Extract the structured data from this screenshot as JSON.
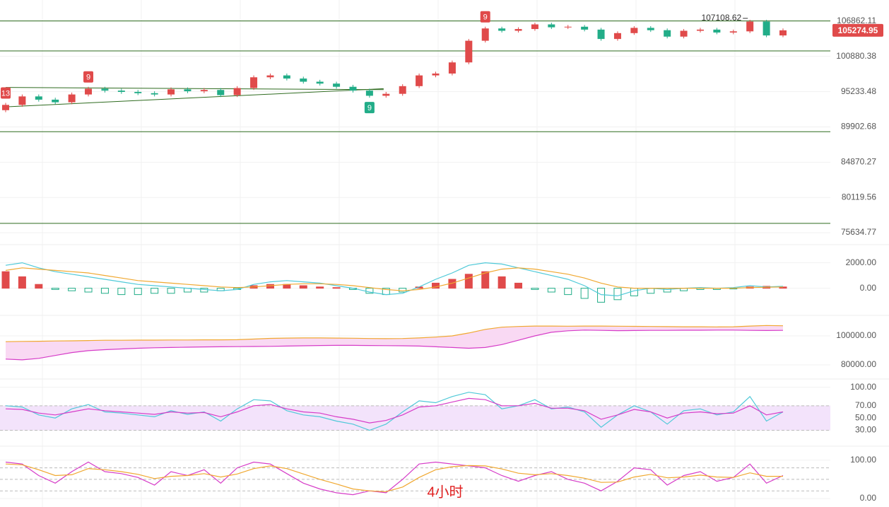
{
  "chart_data": [
    {
      "type": "candlestick",
      "log_scale": true,
      "grid": true,
      "ylim": [
        74255,
        110625
      ],
      "yticks": [
        106862.11,
        100880.38,
        95233.48,
        89902.68,
        84870.27,
        80119.56,
        75634.77
      ],
      "up_color": "#e04a4a",
      "down_color": "#22ad88",
      "line_color": "#2e6b1f",
      "open": [
        92400,
        93200,
        94500,
        94000,
        93600,
        94800,
        95700,
        95400,
        95200,
        95000,
        94800,
        95600,
        95300,
        95500,
        94700,
        95800,
        97500,
        97800,
        97300,
        96800,
        96500,
        96000,
        95400,
        94600,
        94900,
        96100,
        97800,
        98100,
        99900,
        103500,
        105600,
        105200,
        105500,
        106300,
        105800,
        105900,
        105400,
        103800,
        104800,
        105700,
        105300,
        104200,
        105200,
        105400,
        104900,
        105100,
        106800,
        104400
      ],
      "high": [
        93500,
        94800,
        94800,
        94300,
        95100,
        96000,
        96000,
        95700,
        95500,
        95300,
        95900,
        95900,
        95800,
        95800,
        96100,
        97800,
        98100,
        98100,
        97600,
        97100,
        96800,
        96300,
        95700,
        95200,
        96400,
        98100,
        98400,
        100200,
        103800,
        105900,
        105900,
        105800,
        106600,
        106600,
        106200,
        106200,
        105700,
        105100,
        106000,
        106000,
        105600,
        105500,
        105700,
        105700,
        105400,
        107108.62,
        107100,
        105600
      ],
      "low": [
        92100,
        92900,
        93700,
        93300,
        93300,
        94500,
        95100,
        94900,
        94700,
        94500,
        94500,
        95000,
        95000,
        94400,
        94400,
        95500,
        97200,
        97000,
        96500,
        96200,
        95700,
        95100,
        94300,
        94300,
        94600,
        95800,
        97500,
        97800,
        99600,
        103200,
        104900,
        104900,
        105200,
        105500,
        105500,
        105100,
        103500,
        103500,
        104500,
        105000,
        103900,
        103900,
        104900,
        104600,
        104600,
        104800,
        104100,
        104100
      ],
      "close": [
        93200,
        94500,
        94000,
        93600,
        94800,
        95700,
        95400,
        95200,
        95000,
        94800,
        95600,
        95300,
        95500,
        94700,
        95800,
        97500,
        97800,
        97300,
        96800,
        96500,
        96000,
        95400,
        94600,
        94900,
        96100,
        97800,
        98100,
        99900,
        103500,
        105600,
        105200,
        105500,
        106300,
        105800,
        105900,
        105400,
        103800,
        104800,
        105700,
        105300,
        104200,
        105200,
        105400,
        104900,
        105100,
        106800,
        104400,
        105274.95
      ],
      "hlines": [
        106900,
        101800,
        89200,
        76800
      ],
      "trendlines": [
        {
          "x": [
            0,
            22
          ],
          "y": [
            95900,
            95550
          ]
        },
        {
          "x": [
            0,
            22
          ],
          "y": [
            92900,
            95700
          ]
        }
      ],
      "annotations": [
        {
          "text": "13",
          "x": 0,
          "color": "#e04a4a"
        },
        {
          "text": "9",
          "x": 5,
          "color": "#e04a4a"
        },
        {
          "text": "9",
          "x": 22,
          "color": "#22ad88"
        },
        {
          "text": "9",
          "x": 29,
          "color": "#e04a4a"
        }
      ]
    },
    {
      "type": "combo",
      "grid": true,
      "ylim": [
        -1800,
        3200
      ],
      "yticks": [
        {
          "value": 2000,
          "label": "2000.00"
        },
        {
          "value": 0,
          "label": "0.00"
        }
      ],
      "series": [
        {
          "style": "bar",
          "color": "#e04a4a",
          "neg_color": "#22ad88",
          "values": [
            1300,
            900,
            300,
            -100,
            -200,
            -300,
            -400,
            -500,
            -500,
            -400,
            -400,
            -300,
            -300,
            -200,
            -100,
            200,
            300,
            300,
            200,
            100,
            50,
            -100,
            -400,
            -500,
            -300,
            100,
            400,
            700,
            1100,
            1300,
            900,
            400,
            -100,
            -300,
            -500,
            -800,
            -1100,
            -900,
            -600,
            -400,
            -300,
            -200,
            -100,
            -100,
            -50,
            100,
            150,
            100
          ]
        },
        {
          "style": "line",
          "color": "#4fc9d8",
          "values": [
            1800,
            2000,
            1600,
            1300,
            1100,
            900,
            700,
            500,
            300,
            200,
            100,
            0,
            -100,
            -200,
            -100,
            300,
            500,
            600,
            500,
            400,
            200,
            0,
            -300,
            -500,
            -400,
            100,
            700,
            1200,
            1800,
            2000,
            1900,
            1600,
            1300,
            1000,
            700,
            200,
            -500,
            -600,
            -200,
            0,
            -100,
            0,
            50,
            0,
            50,
            200,
            100,
            150
          ]
        },
        {
          "style": "line",
          "color": "#f0a830",
          "values": [
            1400,
            1600,
            1500,
            1400,
            1300,
            1200,
            1000,
            800,
            600,
            500,
            400,
            300,
            200,
            100,
            50,
            100,
            200,
            300,
            350,
            350,
            300,
            200,
            50,
            -100,
            -200,
            -100,
            100,
            400,
            800,
            1200,
            1500,
            1600,
            1500,
            1300,
            1100,
            800,
            400,
            100,
            0,
            0,
            0,
            0,
            0,
            0,
            0,
            50,
            80,
            100
          ]
        }
      ]
    },
    {
      "type": "line",
      "grid": true,
      "ylim": [
        73200,
        112200
      ],
      "fill_color": "#f9d9f3",
      "yticks": [
        {
          "value": 100000,
          "label": "100000.00"
        },
        {
          "value": 80000,
          "label": "80000.00"
        }
      ],
      "series": [
        {
          "color": "#f0a830",
          "values": [
            96000,
            96200,
            96300,
            96500,
            96600,
            96800,
            97000,
            97000,
            97100,
            97100,
            97200,
            97200,
            97300,
            97300,
            97400,
            97800,
            98300,
            98500,
            98600,
            98600,
            98500,
            98400,
            98200,
            98100,
            98200,
            98600,
            99200,
            100000,
            102000,
            104500,
            106000,
            106500,
            106800,
            106800,
            106700,
            106800,
            106800,
            106700,
            106600,
            106500,
            106400,
            106300,
            106300,
            106200,
            106300,
            106800,
            107200,
            107000
          ]
        },
        {
          "color": "#d63cc8",
          "values": [
            84000,
            83500,
            84500,
            86500,
            88500,
            89800,
            90500,
            91000,
            91500,
            91800,
            92000,
            92200,
            92400,
            92500,
            92600,
            92700,
            92800,
            93000,
            93200,
            93400,
            93500,
            93500,
            93400,
            93300,
            93200,
            93000,
            92500,
            92000,
            91500,
            92000,
            94000,
            97000,
            100000,
            102500,
            103500,
            104000,
            103800,
            103600,
            103700,
            103800,
            103800,
            103900,
            103900,
            104000,
            104000,
            103800,
            103700,
            103800
          ]
        }
      ]
    },
    {
      "type": "line",
      "grid": true,
      "ylim": [
        11,
        109
      ],
      "band": [
        30,
        70
      ],
      "band_color": "#f3e3fb",
      "yticks": [
        {
          "value": 100,
          "label": "100.00"
        },
        {
          "value": 70,
          "label": "70.00"
        },
        {
          "value": 50,
          "label": "50.00"
        },
        {
          "value": 30,
          "label": "30.00"
        }
      ],
      "series": [
        {
          "color": "#4fc9d8",
          "values": [
            70,
            68,
            55,
            50,
            65,
            72,
            60,
            58,
            55,
            52,
            62,
            56,
            60,
            45,
            65,
            80,
            78,
            62,
            55,
            52,
            45,
            40,
            30,
            40,
            60,
            78,
            75,
            85,
            92,
            88,
            65,
            70,
            80,
            65,
            68,
            60,
            35,
            55,
            70,
            60,
            40,
            62,
            65,
            55,
            60,
            85,
            45,
            60
          ]
        },
        {
          "color": "#d63cc8",
          "values": [
            65,
            64,
            58,
            55,
            60,
            65,
            62,
            60,
            58,
            56,
            60,
            58,
            59,
            52,
            60,
            70,
            72,
            65,
            60,
            58,
            52,
            48,
            42,
            46,
            55,
            68,
            70,
            76,
            82,
            80,
            70,
            70,
            74,
            66,
            66,
            62,
            48,
            55,
            64,
            60,
            50,
            58,
            60,
            57,
            58,
            70,
            55,
            60
          ]
        }
      ]
    },
    {
      "type": "line",
      "grid": true,
      "ylim": [
        -22,
        129
      ],
      "levels": [
        80,
        50,
        20
      ],
      "yticks": [
        {
          "value": 100,
          "label": "100.00"
        },
        {
          "value": 0,
          "label": "0.00"
        }
      ],
      "series": [
        {
          "color": "#d63cc8",
          "values": [
            95,
            90,
            60,
            40,
            70,
            95,
            70,
            65,
            55,
            35,
            70,
            60,
            75,
            40,
            80,
            95,
            90,
            65,
            40,
            25,
            15,
            10,
            20,
            15,
            50,
            90,
            95,
            90,
            85,
            80,
            60,
            45,
            60,
            70,
            50,
            40,
            20,
            45,
            80,
            75,
            35,
            60,
            70,
            45,
            55,
            90,
            40,
            60
          ]
        },
        {
          "color": "#f0a830",
          "values": [
            90,
            88,
            75,
            60,
            62,
            78,
            75,
            70,
            63,
            52,
            58,
            60,
            65,
            56,
            64,
            78,
            85,
            78,
            64,
            50,
            38,
            25,
            20,
            18,
            30,
            55,
            75,
            83,
            86,
            85,
            77,
            66,
            62,
            65,
            60,
            53,
            42,
            43,
            56,
            63,
            54,
            56,
            61,
            56,
            55,
            67,
            58,
            58
          ]
        }
      ]
    }
  ],
  "period_label": "4小时"
}
